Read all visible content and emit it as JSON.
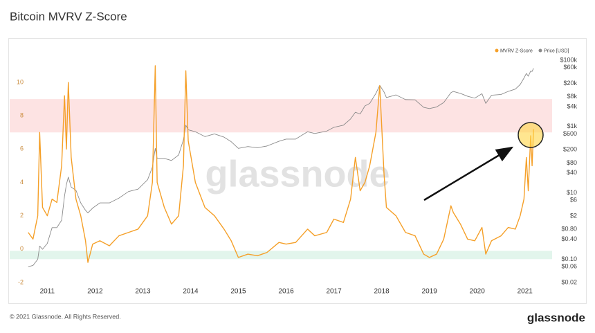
{
  "chart_data": {
    "type": "line",
    "title": "Bitcoin MVRV Z-Score",
    "watermark": "glassnode",
    "x": [
      2010.6,
      2010.7,
      2010.8,
      2010.84,
      2010.9,
      2011.0,
      2011.1,
      2011.2,
      2011.3,
      2011.36,
      2011.4,
      2011.44,
      2011.5,
      2011.6,
      2011.7,
      2011.8,
      2011.85,
      2011.95,
      2012.1,
      2012.3,
      2012.5,
      2012.7,
      2012.9,
      2013.1,
      2013.2,
      2013.26,
      2013.3,
      2013.45,
      2013.6,
      2013.75,
      2013.85,
      2013.9,
      2013.95,
      2014.1,
      2014.3,
      2014.5,
      2014.7,
      2014.85,
      2015.0,
      2015.2,
      2015.4,
      2015.6,
      2015.85,
      2016.0,
      2016.2,
      2016.45,
      2016.6,
      2016.85,
      2017.0,
      2017.2,
      2017.35,
      2017.45,
      2017.55,
      2017.65,
      2017.75,
      2017.88,
      2017.96,
      2018.05,
      2018.1,
      2018.3,
      2018.5,
      2018.7,
      2018.88,
      2019.0,
      2019.15,
      2019.3,
      2019.45,
      2019.5,
      2019.65,
      2019.8,
      2019.95,
      2020.1,
      2020.18,
      2020.3,
      2020.5,
      2020.65,
      2020.8,
      2020.9,
      2020.98,
      2021.03,
      2021.07,
      2021.12,
      2021.15,
      2021.18
    ],
    "series": [
      {
        "name": "MVRV Z-Score",
        "color": "#f5a029",
        "axis": "y",
        "values": [
          1.0,
          0.6,
          2.0,
          7.0,
          2.5,
          2.0,
          3.0,
          2.8,
          5.0,
          9.2,
          6.0,
          10.0,
          5.5,
          3.0,
          2.0,
          0.5,
          -0.8,
          0.3,
          0.5,
          0.2,
          0.8,
          1.0,
          1.2,
          2.0,
          4.0,
          11.0,
          4.0,
          2.5,
          1.5,
          2.0,
          5.0,
          10.7,
          6.5,
          4.0,
          2.5,
          2.0,
          1.2,
          0.5,
          -0.5,
          -0.3,
          -0.4,
          -0.2,
          0.4,
          0.3,
          0.4,
          1.2,
          0.8,
          1.0,
          1.8,
          1.6,
          3.0,
          5.5,
          3.5,
          4.0,
          5.0,
          7.0,
          9.8,
          4.5,
          2.5,
          2.0,
          1.0,
          0.8,
          -0.3,
          -0.5,
          -0.3,
          0.6,
          2.6,
          2.2,
          1.5,
          0.6,
          0.5,
          1.3,
          -0.3,
          0.5,
          0.8,
          1.3,
          1.2,
          2.0,
          3.0,
          5.5,
          3.5,
          6.8,
          5.0,
          7.2
        ]
      },
      {
        "name": "Price [USD]",
        "color": "#8a8a8a",
        "axis": "y2",
        "values": [
          0.06,
          0.065,
          0.1,
          0.25,
          0.2,
          0.3,
          0.9,
          0.9,
          1.5,
          8,
          18,
          30,
          15,
          12,
          5,
          3,
          2.5,
          3.5,
          5,
          5,
          7,
          11,
          13,
          25,
          60,
          220,
          110,
          110,
          95,
          140,
          400,
          1100,
          800,
          700,
          500,
          600,
          480,
          350,
          220,
          250,
          230,
          260,
          360,
          420,
          420,
          700,
          620,
          730,
          950,
          1100,
          1700,
          2700,
          2400,
          4200,
          5000,
          10000,
          17500,
          11000,
          7500,
          9000,
          6500,
          6400,
          3800,
          3500,
          3900,
          5300,
          10500,
          11500,
          10000,
          8200,
          7200,
          9800,
          5000,
          8800,
          9300,
          11500,
          13500,
          18500,
          29000,
          40000,
          33000,
          47000,
          46000,
          57000
        ]
      }
    ],
    "xlim": [
      2010.56,
      2021.54
    ],
    "xticks": [
      2011,
      2012,
      2013,
      2014,
      2015,
      2016,
      2017,
      2018,
      2019,
      2020,
      2021
    ],
    "ylim": [
      -2,
      11.33
    ],
    "yticks": [
      -2,
      0,
      2,
      4,
      6,
      8,
      10
    ],
    "y2lim": [
      0.02,
      100000
    ],
    "y2scale": "log",
    "y2ticks": [
      {
        "value": 0.02,
        "label": "$0.02"
      },
      {
        "value": 0.06,
        "label": "$0.06"
      },
      {
        "value": 0.1,
        "label": "$0.10"
      },
      {
        "value": 0.4,
        "label": "$0.40"
      },
      {
        "value": 0.8,
        "label": "$0.80"
      },
      {
        "value": 2,
        "label": "$2"
      },
      {
        "value": 6,
        "label": "$6"
      },
      {
        "value": 10,
        "label": "$10"
      },
      {
        "value": 40,
        "label": "$40"
      },
      {
        "value": 80,
        "label": "$80"
      },
      {
        "value": 200,
        "label": "$200"
      },
      {
        "value": 600,
        "label": "$600"
      },
      {
        "value": 1000,
        "label": "$1k"
      },
      {
        "value": 4000,
        "label": "$4k"
      },
      {
        "value": 8000,
        "label": "$8k"
      },
      {
        "value": 20000,
        "label": "$20k"
      },
      {
        "value": 60000,
        "label": "$60k"
      },
      {
        "value": 100000,
        "label": "$100k"
      }
    ],
    "bands": [
      {
        "range": [
          7,
          9
        ],
        "color": "#fde3e3"
      },
      {
        "range": [
          -0.6,
          -0.1
        ],
        "color": "#e2f5ec"
      }
    ],
    "grid": false,
    "legend": "top-right"
  },
  "footer": {
    "copyright": "© 2021 Glassnode. All Rights Reserved.",
    "logo": "glassnode"
  }
}
